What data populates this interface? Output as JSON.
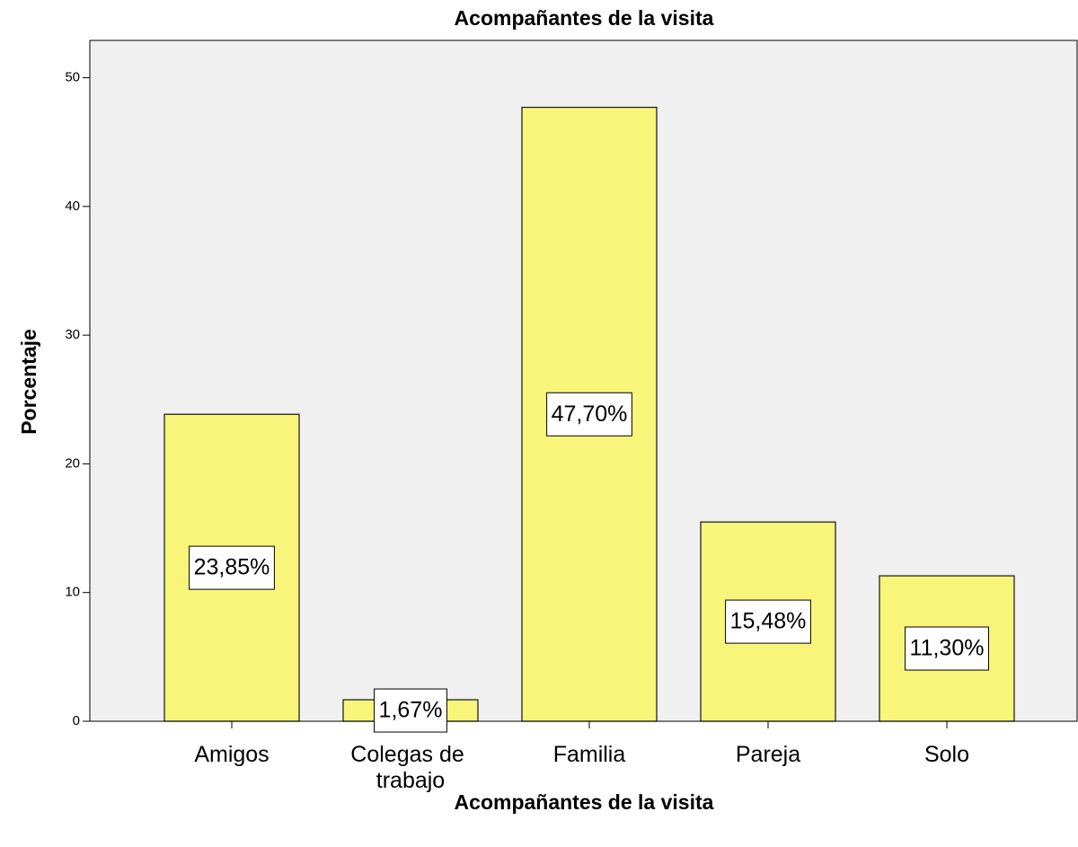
{
  "chart_data": {
    "type": "bar",
    "title": "Acompañantes de la visita",
    "x_label": "Acompañantes de la visita",
    "y_label": "Porcentaje",
    "categories": [
      "Amigos",
      "Colegas de trabajo",
      "Familia",
      "Pareja",
      "Solo"
    ],
    "values": [
      23.85,
      1.67,
      47.7,
      15.48,
      11.3
    ],
    "value_labels": [
      "23,85%",
      "1,67%",
      "47,70%",
      "15,48%",
      "11,30%"
    ],
    "color": "#f9f57a",
    "ylim": [
      0,
      52.9
    ],
    "yticks": [
      0,
      10,
      20,
      30,
      40,
      50
    ],
    "grid": false
  }
}
